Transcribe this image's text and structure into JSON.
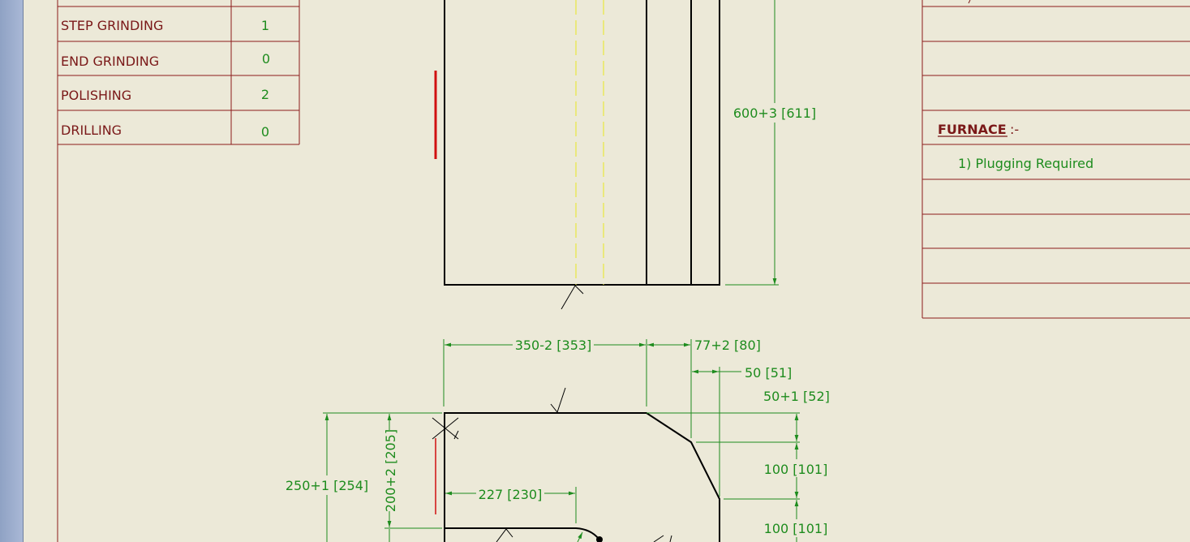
{
  "operations_table": {
    "rows": [
      {
        "label": "STEP GRINDING",
        "value": "1"
      },
      {
        "label": "END GRINDING",
        "value": "0"
      },
      {
        "label": "POLISHING",
        "value": "2"
      },
      {
        "label": "DRILLING",
        "value": "0"
      }
    ]
  },
  "notes_panel": {
    "heading": "FURNACE",
    "heading_suffix": ":-",
    "items": [
      "1) Plugging Required"
    ]
  },
  "dimensions": {
    "height_total": "600+3 [611]",
    "top_width": "350-2 [353]",
    "chamfer_width": "77+2 [80]",
    "step_width": "50 [51]",
    "step_height_top": "50+1 [52]",
    "overall_height": "250+1 [254]",
    "inner_height": "200+2 [205]",
    "inner_width": "227 [230]",
    "chamfer_height": "100 [101]",
    "lower_height": "100 [101]"
  },
  "colors": {
    "background": "#ECE9D8",
    "table_border": "#8B1A1A",
    "table_text": "#7A1818",
    "dimension": "#1E8C1E",
    "outline": "#000000",
    "centerline": "#E8E840",
    "marker": "#D01010"
  }
}
